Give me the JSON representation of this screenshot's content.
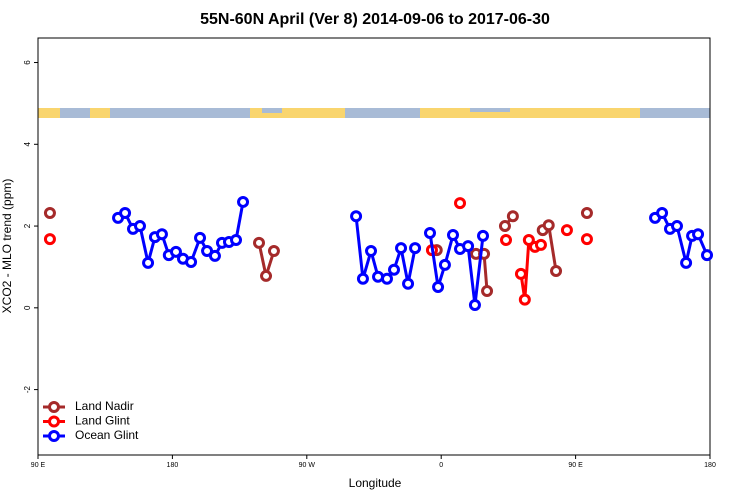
{
  "chart_data": {
    "type": "line",
    "title": "55N-60N April (Ver 8)   2014-09-06 to 2017-06-30",
    "x_label": "Longitude",
    "y_label": "XCO2 - MLO trend (ppm)",
    "xlim": [
      90,
      540
    ],
    "ylim": [
      -3.6,
      6.6
    ],
    "xticks": [
      {
        "value": 90,
        "label": "90 E"
      },
      {
        "value": 180,
        "label": "180"
      },
      {
        "value": 270,
        "label": "90 W"
      },
      {
        "value": 360,
        "label": "0"
      },
      {
        "value": 450,
        "label": "90 E"
      },
      {
        "value": 540,
        "label": "180"
      }
    ],
    "yticks": [
      -2,
      0,
      2,
      4,
      6
    ],
    "legend": "bottom-left",
    "series": [
      {
        "name": "Land Nadir",
        "color": "#a52a2a",
        "x": [
          98,
          null,
          238,
          242.7,
          248,
          null,
          357,
          null,
          383.3,
          388.7,
          390.7,
          null,
          402.7,
          408,
          null,
          428,
          432,
          436.9,
          null,
          457.6
        ],
        "values": [
          2.32,
          null,
          1.59,
          0.78,
          1.39,
          null,
          1.41,
          null,
          1.32,
          1.32,
          0.41,
          null,
          2.0,
          2.24,
          null,
          1.9,
          2.02,
          0.9,
          null,
          2.32
        ]
      },
      {
        "name": "Land Glint",
        "color": "#ff0000",
        "x": [
          98,
          null,
          353.8,
          null,
          372.6,
          null,
          403.4,
          null,
          413.4,
          416,
          418.7,
          422.8,
          426.8,
          null,
          444.2,
          null,
          457.6
        ],
        "values": [
          1.68,
          null,
          1.41,
          null,
          2.56,
          null,
          1.66,
          null,
          0.83,
          0.2,
          1.66,
          1.49,
          1.54,
          null,
          1.9,
          null,
          1.68
        ]
      },
      {
        "name": "Ocean Glint",
        "color": "#0000ff",
        "x": [
          143.6,
          148.3,
          153.6,
          158.3,
          163.7,
          168.3,
          173.0,
          177.6,
          182.4,
          187.1,
          192.5,
          198.5,
          203.2,
          208.5,
          213.2,
          217.9,
          222.6,
          227.3,
          null,
          303,
          307.6,
          313,
          317.7,
          323.7,
          328.4,
          333.1,
          337.8,
          342.5,
          null,
          352.5,
          357.9,
          362.5,
          367.9,
          372.6,
          378,
          382.6,
          388,
          null,
          503.2,
          507.9,
          513.2,
          517.9,
          524,
          528,
          532,
          538
        ],
        "values": [
          2.2,
          2.32,
          1.93,
          2.0,
          1.1,
          1.73,
          1.8,
          1.29,
          1.37,
          1.2,
          1.12,
          1.71,
          1.39,
          1.27,
          1.59,
          1.61,
          1.66,
          2.59,
          null,
          2.24,
          0.71,
          1.39,
          0.76,
          0.71,
          0.93,
          1.46,
          0.59,
          1.46,
          null,
          1.83,
          0.51,
          1.05,
          1.78,
          1.44,
          1.51,
          0.07,
          1.76,
          null,
          2.2,
          2.32,
          1.93,
          2.0,
          1.1,
          1.76,
          1.8,
          1.29
        ]
      }
    ]
  }
}
